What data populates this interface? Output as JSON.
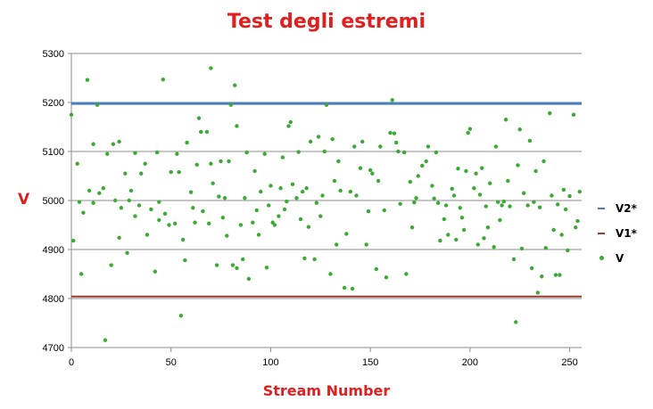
{
  "chart_data": {
    "type": "scatter",
    "title": "Test degli estremi",
    "xlabel": "Stream Number",
    "ylabel": "V",
    "xlim": [
      0,
      256
    ],
    "ylim": [
      4700,
      5300
    ],
    "xticks": [
      "0",
      "50",
      "100",
      "150",
      "200",
      "250"
    ],
    "yticks": [
      "4700",
      "4800",
      "4900",
      "5000",
      "5100",
      "5200",
      "5300"
    ],
    "grid": "horizontal",
    "legend_position": "right",
    "series": [
      {
        "name": "V2*",
        "type": "hline",
        "value": 5198,
        "color": "#4a7ebb"
      },
      {
        "name": "V1*",
        "type": "hline",
        "value": 4804,
        "color": "#9b3b2f"
      },
      {
        "name": "V",
        "type": "scatter",
        "color": "#3aaa35",
        "x": [
          0,
          1,
          3,
          4,
          5,
          6,
          8,
          9,
          11,
          11,
          13,
          14,
          16,
          17,
          18,
          20,
          21,
          22,
          24,
          24,
          25,
          27,
          28,
          29,
          30,
          32,
          32,
          34,
          35,
          37,
          38,
          40,
          42,
          43,
          44,
          44,
          46,
          47,
          49,
          50,
          52,
          53,
          54,
          55,
          56,
          57,
          58,
          60,
          61,
          62,
          63,
          64,
          65,
          66,
          68,
          69,
          70,
          70,
          71,
          73,
          74,
          75,
          76,
          77,
          78,
          79,
          80,
          81,
          82,
          83,
          83,
          85,
          86,
          87,
          88,
          89,
          91,
          92,
          93,
          94,
          95,
          97,
          98,
          99,
          100,
          101,
          102,
          104,
          105,
          106,
          107,
          108,
          109,
          110,
          111,
          113,
          114,
          115,
          116,
          117,
          118,
          119,
          120,
          122,
          123,
          124,
          125,
          126,
          127,
          128,
          130,
          131,
          132,
          133,
          134,
          135,
          137,
          138,
          140,
          141,
          142,
          143,
          145,
          146,
          148,
          149,
          150,
          151,
          153,
          154,
          155,
          157,
          158,
          160,
          161,
          162,
          163,
          164,
          165,
          167,
          168,
          170,
          171,
          172,
          173,
          174,
          176,
          178,
          179,
          181,
          182,
          183,
          184,
          185,
          187,
          188,
          189,
          191,
          192,
          193,
          194,
          195,
          196,
          197,
          198,
          199,
          200,
          202,
          203,
          204,
          205,
          206,
          207,
          208,
          209,
          210,
          212,
          213,
          214,
          215,
          216,
          217,
          218,
          219,
          220,
          222,
          223,
          224,
          225,
          226,
          227,
          229,
          230,
          231,
          232,
          233,
          234,
          235,
          236,
          237,
          238,
          240,
          241,
          242,
          243,
          244,
          245,
          246,
          247,
          248,
          249,
          250,
          252,
          253,
          254,
          255
        ],
        "y": [
          5175,
          4918,
          5075,
          4997,
          4850,
          4975,
          5246,
          5020,
          4995,
          5115,
          5195,
          5015,
          5025,
          4715,
          5095,
          4868,
          5115,
          5000,
          5120,
          4924,
          4985,
          5055,
          4893,
          5000,
          5020,
          4968,
          5097,
          4990,
          5055,
          5075,
          4930,
          4982,
          4855,
          5098,
          4997,
          4960,
          5247,
          4973,
          4950,
          5058,
          4953,
          5095,
          5058,
          4765,
          4920,
          4878,
          5118,
          5017,
          4985,
          4955,
          5073,
          5168,
          5140,
          4978,
          5140,
          4953,
          5270,
          5075,
          5035,
          4868,
          5008,
          5080,
          4965,
          5005,
          4928,
          5080,
          5195,
          4868,
          5235,
          4862,
          5152,
          4950,
          4880,
          5005,
          5098,
          4840,
          4955,
          5060,
          4980,
          4930,
          5018,
          5095,
          4863,
          4990,
          5030,
          4955,
          4950,
          4968,
          5025,
          5088,
          4982,
          4998,
          5152,
          5160,
          5033,
          5005,
          5099,
          4962,
          5018,
          4882,
          5025,
          4946,
          5120,
          4880,
          4995,
          5130,
          4968,
          5010,
          5100,
          5195,
          4850,
          5125,
          5040,
          4910,
          5080,
          5020,
          4822,
          4932,
          5018,
          4820,
          5110,
          5010,
          5066,
          5120,
          4910,
          4978,
          5062,
          5055,
          4860,
          5040,
          5110,
          4980,
          4843,
          5138,
          5205,
          5137,
          5118,
          5100,
          4993,
          5098,
          4850,
          5038,
          4945,
          4996,
          5005,
          5050,
          5071,
          5080,
          5110,
          5030,
          5004,
          5098,
          4995,
          4918,
          4962,
          4990,
          4930,
          5024,
          5010,
          4920,
          5065,
          4985,
          4965,
          4940,
          5060,
          5138,
          5146,
          5025,
          5055,
          4910,
          5012,
          5066,
          4923,
          4988,
          4945,
          5035,
          4905,
          5110,
          4997,
          4960,
          4990,
          4998,
          5165,
          5040,
          4988,
          4880,
          4752,
          5072,
          5145,
          4902,
          5015,
          4990,
          5122,
          4862,
          4997,
          5060,
          4812,
          4986,
          4845,
          5080,
          4903,
          5178,
          5010,
          4940,
          4848,
          4992,
          4848,
          4930,
          5022,
          4982,
          4898,
          5009,
          5175,
          4945,
          4958,
          5018
        ]
      }
    ]
  }
}
